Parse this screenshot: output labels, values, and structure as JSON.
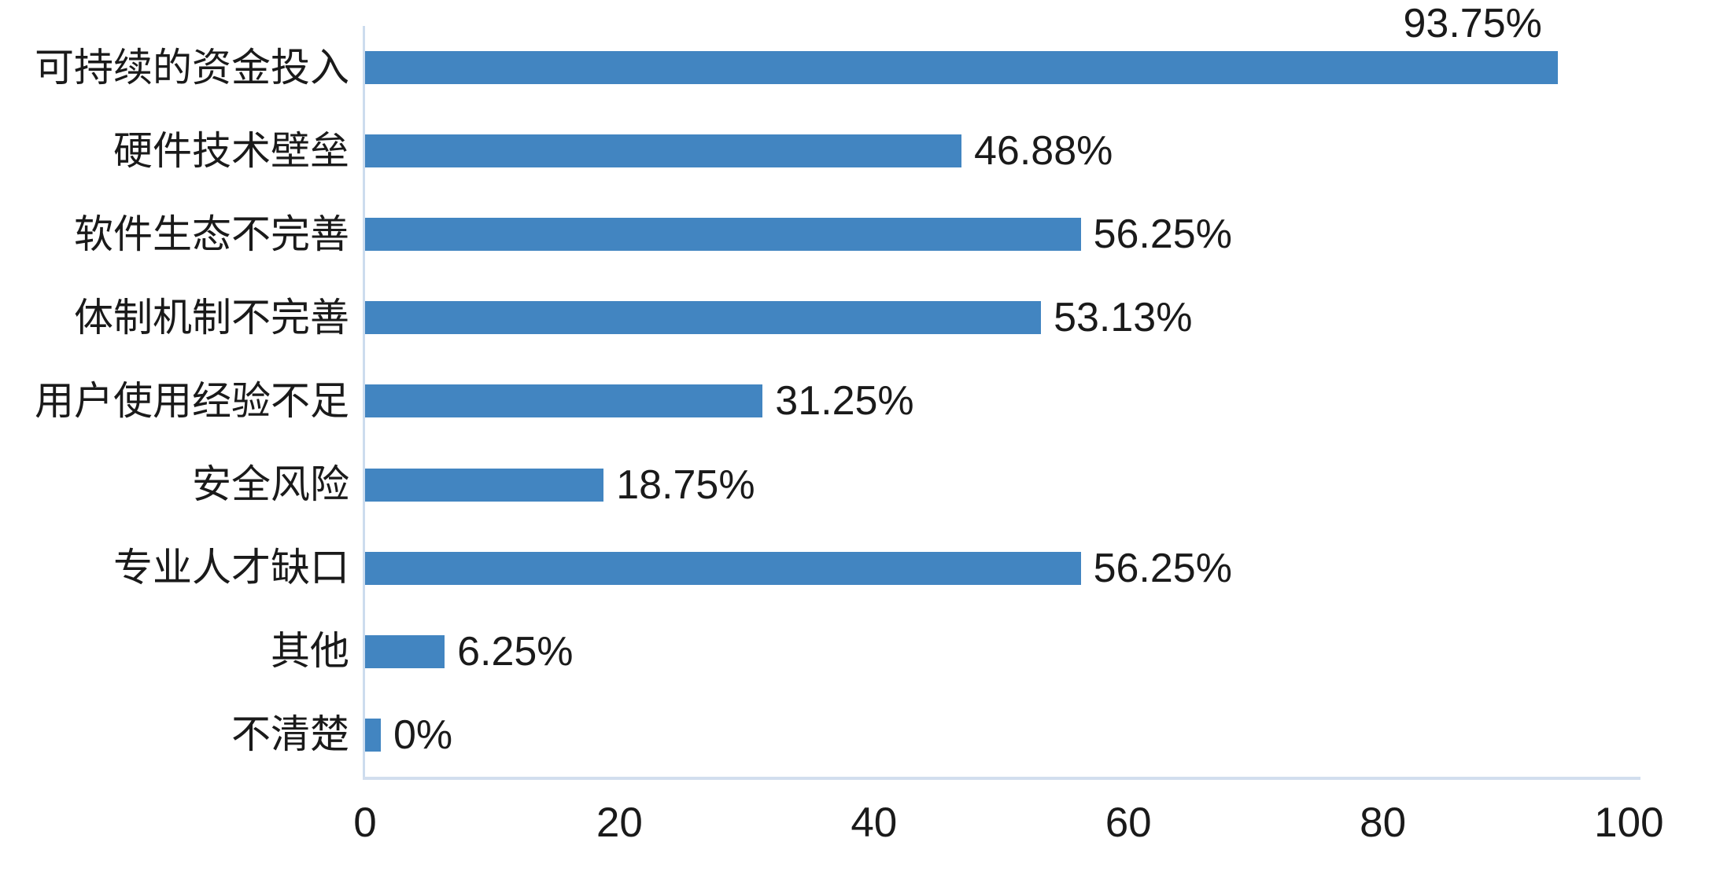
{
  "chart_data": {
    "type": "bar",
    "orientation": "horizontal",
    "title": "",
    "xlabel": "",
    "ylabel": "",
    "categories": [
      "可持续的资金投入",
      "硬件技术壁垒",
      "软件生态不完善",
      "体制机制不完善",
      "用户使用经验不足",
      "安全风险",
      "专业人才缺口",
      "其他",
      "不清楚"
    ],
    "values": [
      93.75,
      46.88,
      56.25,
      53.13,
      31.25,
      18.75,
      56.25,
      6.25,
      0
    ],
    "value_labels": [
      "93.75%",
      "46.88%",
      "56.25%",
      "53.13%",
      "31.25%",
      "18.75%",
      "56.25%",
      "6.25%",
      "0%"
    ],
    "xlim": [
      0,
      100
    ],
    "x_ticks": [
      0,
      20,
      40,
      60,
      80,
      100
    ],
    "grid": false,
    "legend": false,
    "value_label_position": "right of bar end; first bar label placed above bar end",
    "zero_value_stub": "tiny bar stub drawn for 0% category",
    "colors": {
      "bar": "#4285C1",
      "axis_line": "#CCDCEE",
      "text": "#1A1A1A",
      "background": "#FFFFFF"
    }
  }
}
